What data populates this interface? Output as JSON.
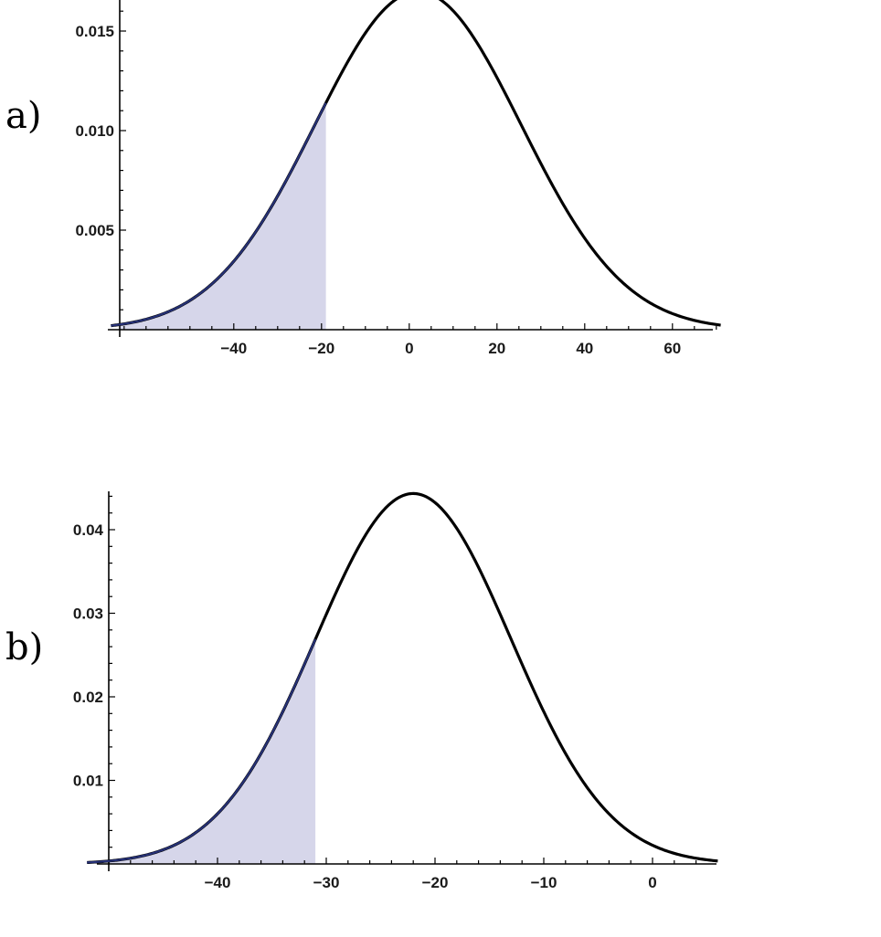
{
  "panels": [
    {
      "label": "a)"
    },
    {
      "label": "b)"
    }
  ],
  "colors": {
    "curve": "#000000",
    "shade_fill": "#d6d6ea",
    "shade_edge": "#2d3a8c",
    "axis": "#000000"
  },
  "chart_data": [
    {
      "type": "area",
      "title": "",
      "xlabel": "",
      "ylabel": "",
      "distribution": "normal",
      "mean": 2,
      "sd": 23.5,
      "shade_to": -19,
      "xlim": [
        -66,
        70
      ],
      "ylim": [
        0,
        0.017
      ],
      "x_ticks": [
        -40,
        -20,
        0,
        20,
        40,
        60
      ],
      "x_tick_labels": [
        "−40",
        "−20",
        "0",
        "20",
        "40",
        "60"
      ],
      "y_ticks": [
        0.005,
        0.01,
        0.015
      ],
      "y_tick_labels": [
        "0.005",
        "0.010",
        "0.015"
      ],
      "series": [
        {
          "x": [
            -66,
            -50,
            -40,
            -30,
            -19,
            -10,
            0,
            2,
            10,
            20,
            30,
            40,
            50,
            60,
            70
          ],
          "y": [
            0.0004,
            0.0017,
            0.0037,
            0.0066,
            0.0108,
            0.0149,
            0.0169,
            0.017,
            0.0159,
            0.0125,
            0.0083,
            0.0045,
            0.002,
            0.0008,
            0.0003
          ]
        }
      ],
      "grid": false
    },
    {
      "type": "area",
      "title": "",
      "xlabel": "",
      "ylabel": "",
      "distribution": "normal",
      "mean": -22,
      "sd": 9,
      "shade_to": -31,
      "xlim": [
        -50,
        5
      ],
      "ylim": [
        0,
        0.045
      ],
      "x_ticks": [
        -40,
        -30,
        -20,
        -10,
        0
      ],
      "x_tick_labels": [
        "−40",
        "−30",
        "−20",
        "−10",
        "0"
      ],
      "y_ticks": [
        0.01,
        0.02,
        0.03,
        0.04
      ],
      "y_tick_labels": [
        "0.01",
        "0.02",
        "0.03",
        "0.04"
      ],
      "series": [
        {
          "x": [
            -50,
            -45,
            -40,
            -35,
            -31,
            -27,
            -22,
            -17,
            -13,
            -10,
            -5,
            0,
            5
          ],
          "y": [
            0.0003,
            0.0016,
            0.0058,
            0.0157,
            0.0267,
            0.0379,
            0.0443,
            0.0379,
            0.0267,
            0.0182,
            0.0075,
            0.0022,
            0.0005
          ]
        }
      ],
      "grid": false
    }
  ]
}
